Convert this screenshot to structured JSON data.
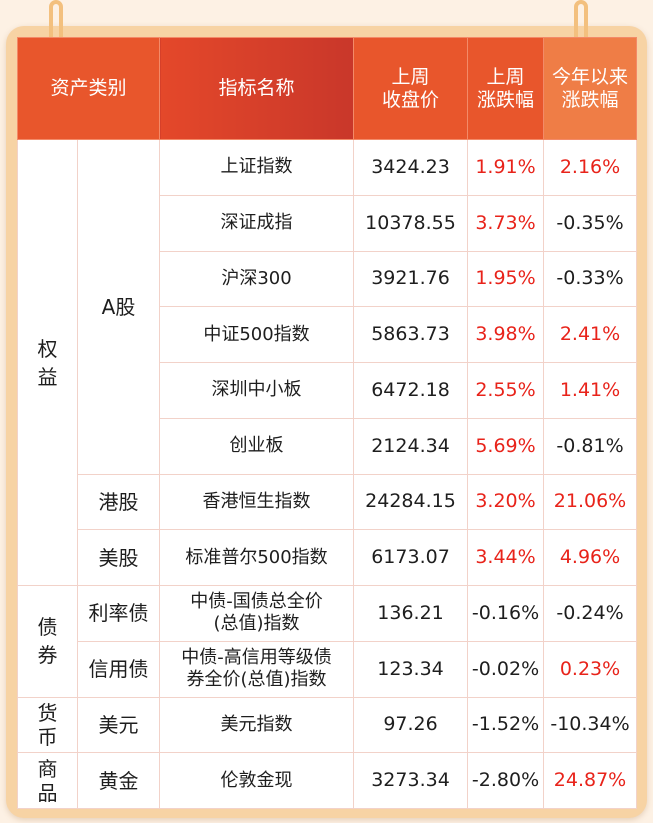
{
  "headers": {
    "asset_class": "资产类别",
    "index_name": "指标名称",
    "close": "上周\n收盘价",
    "weekly_change": "上周\n涨跌幅",
    "ytd_change": "今年以来\n涨跌幅"
  },
  "groups": {
    "equity": "权益",
    "bond": "债券",
    "currency": "货币",
    "commodity": "商品"
  },
  "subgroups": {
    "a_share": "A股",
    "hk": "港股",
    "us": "美股",
    "rate_bond": "利率债",
    "credit_bond": "信用债",
    "usd": "美元",
    "gold": "黄金"
  },
  "rows": [
    {
      "name": "上证指数",
      "close": "3424.23",
      "weekly": "1.91%",
      "weekly_color": "#e8231a",
      "ytd": "2.16%",
      "ytd_color": "#e8231a"
    },
    {
      "name": "深证成指",
      "close": "10378.55",
      "weekly": "3.73%",
      "weekly_color": "#e8231a",
      "ytd": "-0.35%",
      "ytd_color": "#1e1e1e"
    },
    {
      "name": "沪深300",
      "close": "3921.76",
      "weekly": "1.95%",
      "weekly_color": "#e8231a",
      "ytd": "-0.33%",
      "ytd_color": "#1e1e1e"
    },
    {
      "name": "中证500指数",
      "close": "5863.73",
      "weekly": "3.98%",
      "weekly_color": "#e8231a",
      "ytd": "2.41%",
      "ytd_color": "#e8231a"
    },
    {
      "name": "深圳中小板",
      "close": "6472.18",
      "weekly": "2.55%",
      "weekly_color": "#e8231a",
      "ytd": "1.41%",
      "ytd_color": "#e8231a"
    },
    {
      "name": "创业板",
      "close": "2124.34",
      "weekly": "5.69%",
      "weekly_color": "#e8231a",
      "ytd": "-0.81%",
      "ytd_color": "#1e1e1e"
    },
    {
      "name": "香港恒生指数",
      "close": "24284.15",
      "weekly": "3.20%",
      "weekly_color": "#e8231a",
      "ytd": "21.06%",
      "ytd_color": "#e8231a"
    },
    {
      "name": "标准普尔500指数",
      "close": "6173.07",
      "weekly": "3.44%",
      "weekly_color": "#e8231a",
      "ytd": "4.96%",
      "ytd_color": "#e8231a"
    },
    {
      "name": "中债-国债总全价\n(总值)指数",
      "close": "136.21",
      "weekly": "-0.16%",
      "weekly_color": "#1e1e1e",
      "ytd": "-0.24%",
      "ytd_color": "#1e1e1e"
    },
    {
      "name": "中债-高信用等级债\n券全价(总值)指数",
      "close": "123.34",
      "weekly": "-0.02%",
      "weekly_color": "#1e1e1e",
      "ytd": "0.23%",
      "ytd_color": "#e8231a"
    },
    {
      "name": "美元指数",
      "close": "97.26",
      "weekly": "-1.52%",
      "weekly_color": "#1e1e1e",
      "ytd": "-10.34%",
      "ytd_color": "#1e1e1e"
    },
    {
      "name": "伦敦金现",
      "close": "3273.34",
      "weekly": "-2.80%",
      "weekly_color": "#1e1e1e",
      "ytd": "24.87%",
      "ytd_color": "#e8231a"
    }
  ]
}
